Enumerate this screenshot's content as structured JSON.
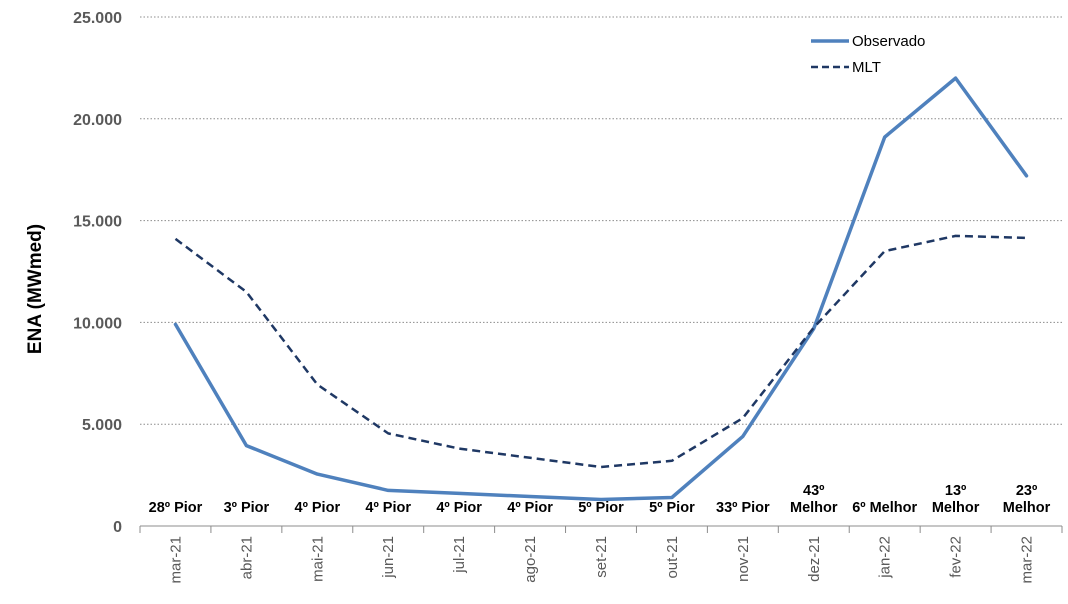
{
  "chart_data": {
    "type": "line",
    "xlabel": "",
    "ylabel": "ENA (MWmed)",
    "ylim": [
      0,
      25000
    ],
    "yticks": [
      0,
      5000,
      10000,
      15000,
      20000,
      25000
    ],
    "ytick_labels": [
      "0",
      "5.000",
      "10.000",
      "15.000",
      "20.000",
      "25.000"
    ],
    "categories": [
      "mar-21",
      "abr-21",
      "mai-21",
      "jun-21",
      "jul-21",
      "ago-21",
      "set-21",
      "out-21",
      "nov-21",
      "dez-21",
      "jan-22",
      "fev-22",
      "mar-22"
    ],
    "grid": true,
    "legend_position": "top-right",
    "series": [
      {
        "name": "Observado",
        "style": "solid",
        "color": "#4F81BD",
        "values": [
          9900,
          3950,
          2550,
          1750,
          1600,
          1450,
          1300,
          1400,
          4400,
          9700,
          19100,
          22000,
          17200
        ]
      },
      {
        "name": "MLT",
        "style": "dashed",
        "color": "#1F3864",
        "values": [
          14100,
          11500,
          6950,
          4550,
          3800,
          3350,
          2900,
          3200,
          5300,
          9750,
          13500,
          14250,
          14150
        ]
      }
    ],
    "annotations": [
      [
        "28º Pior"
      ],
      [
        "3º Pior"
      ],
      [
        "4º Pior"
      ],
      [
        "4º Pior"
      ],
      [
        "4º Pior"
      ],
      [
        "4º Pior"
      ],
      [
        "5º Pior"
      ],
      [
        "5º Pior"
      ],
      [
        "33º Pior"
      ],
      [
        "43º",
        "Melhor"
      ],
      [
        "6º Melhor"
      ],
      [
        "13º",
        "Melhor"
      ],
      [
        "23º",
        "Melhor"
      ]
    ]
  }
}
